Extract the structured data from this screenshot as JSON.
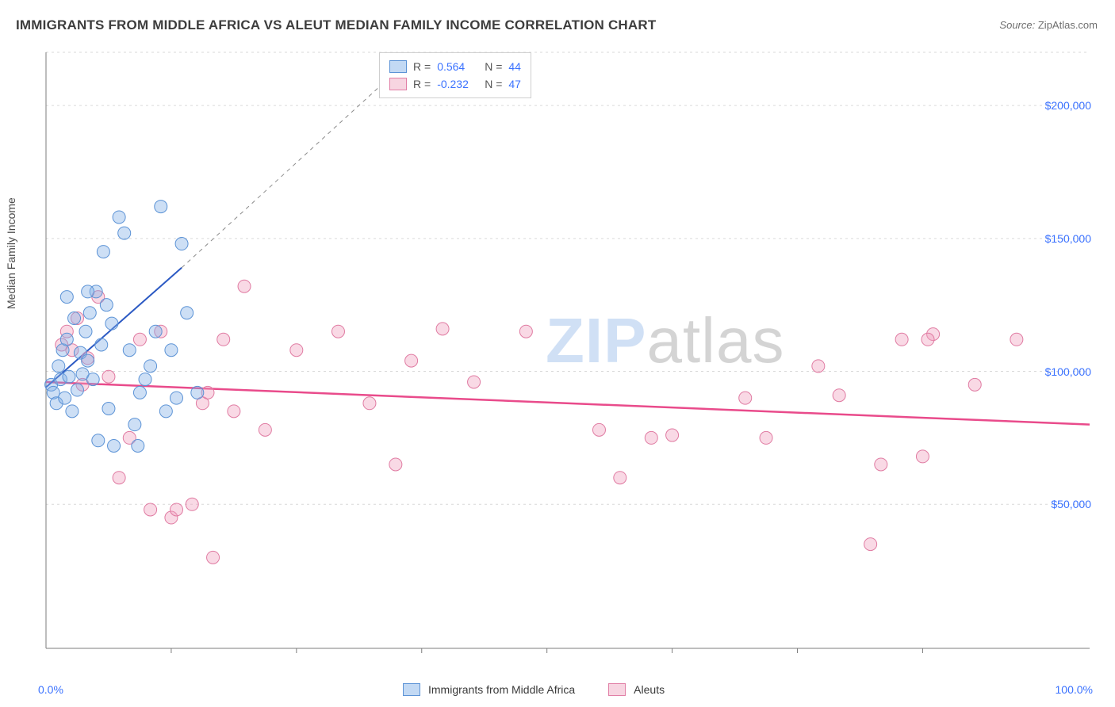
{
  "title": "IMMIGRANTS FROM MIDDLE AFRICA VS ALEUT MEDIAN FAMILY INCOME CORRELATION CHART",
  "source_label": "Source:",
  "source_value": "ZipAtlas.com",
  "watermark_a": "ZIP",
  "watermark_b": "atlas",
  "ylabel": "Median Family Income",
  "chart": {
    "type": "scatter",
    "background_color": "#ffffff",
    "grid_color": "#d9d9d9",
    "axis_color": "#7d7d7d",
    "xlim": [
      0,
      100
    ],
    "ylim": [
      0,
      220000
    ],
    "xtick_left": "0.0%",
    "xtick_right": "100.0%",
    "yticks": [
      50000,
      100000,
      150000,
      200000
    ],
    "ytick_labels": [
      "$50,000",
      "$100,000",
      "$150,000",
      "$200,000"
    ],
    "xtick_positions": [
      12,
      24,
      36,
      48,
      60,
      72,
      84
    ],
    "legend_top": {
      "r_label": "R =",
      "n_label": "N =",
      "series": [
        {
          "swatch": "blue",
          "r": "0.564",
          "n": "44"
        },
        {
          "swatch": "pink",
          "r": "-0.232",
          "n": "47"
        }
      ]
    },
    "legend_bottom": {
      "a_label": "Immigrants from Middle Africa",
      "b_label": "Aleuts"
    },
    "series_blue": {
      "color_fill": "rgba(130,175,230,0.40)",
      "color_stroke": "#5c93d6",
      "marker_radius": 8,
      "trend": {
        "x1": 0,
        "y1": 94000,
        "x2": 13,
        "y2": 139000,
        "dash_to_x": 35,
        "dash_to_y": 218000,
        "color": "#2b59c3",
        "width": 2
      },
      "points": [
        [
          0.5,
          95000
        ],
        [
          0.7,
          92000
        ],
        [
          1.0,
          88000
        ],
        [
          1.2,
          102000
        ],
        [
          1.4,
          97000
        ],
        [
          1.6,
          108000
        ],
        [
          1.8,
          90000
        ],
        [
          2.0,
          112000
        ],
        [
          2.2,
          98000
        ],
        [
          2.5,
          85000
        ],
        [
          2.7,
          120000
        ],
        [
          3.0,
          93000
        ],
        [
          3.3,
          107000
        ],
        [
          3.5,
          99000
        ],
        [
          3.8,
          115000
        ],
        [
          4.0,
          104000
        ],
        [
          4.2,
          122000
        ],
        [
          4.5,
          97000
        ],
        [
          4.8,
          130000
        ],
        [
          5.0,
          74000
        ],
        [
          5.3,
          110000
        ],
        [
          5.5,
          145000
        ],
        [
          5.8,
          125000
        ],
        [
          6.0,
          86000
        ],
        [
          6.3,
          118000
        ],
        [
          6.5,
          72000
        ],
        [
          7.0,
          158000
        ],
        [
          7.5,
          152000
        ],
        [
          8.0,
          108000
        ],
        [
          8.5,
          80000
        ],
        [
          8.8,
          72000
        ],
        [
          9.0,
          92000
        ],
        [
          9.5,
          97000
        ],
        [
          10.0,
          102000
        ],
        [
          10.5,
          115000
        ],
        [
          11.0,
          162000
        ],
        [
          11.5,
          85000
        ],
        [
          12.0,
          108000
        ],
        [
          12.5,
          90000
        ],
        [
          13.0,
          148000
        ],
        [
          13.5,
          122000
        ],
        [
          14.5,
          92000
        ],
        [
          4.0,
          130000
        ],
        [
          2.0,
          128000
        ]
      ]
    },
    "series_pink": {
      "color_fill": "rgba(240,160,190,0.40)",
      "color_stroke": "#e07ba2",
      "marker_radius": 8,
      "trend": {
        "x1": 0,
        "y1": 96000,
        "x2": 100,
        "y2": 80000,
        "color": "#e94b8b",
        "width": 2.5
      },
      "points": [
        [
          1.5,
          110000
        ],
        [
          2.0,
          115000
        ],
        [
          2.5,
          108000
        ],
        [
          3.0,
          120000
        ],
        [
          3.5,
          95000
        ],
        [
          4.0,
          105000
        ],
        [
          5.0,
          128000
        ],
        [
          6.0,
          98000
        ],
        [
          7.0,
          60000
        ],
        [
          8.0,
          75000
        ],
        [
          9.0,
          112000
        ],
        [
          10.0,
          48000
        ],
        [
          11.0,
          115000
        ],
        [
          12.0,
          45000
        ],
        [
          12.5,
          48000
        ],
        [
          14.0,
          50000
        ],
        [
          15.0,
          88000
        ],
        [
          15.5,
          92000
        ],
        [
          16.0,
          30000
        ],
        [
          17.0,
          112000
        ],
        [
          18.0,
          85000
        ],
        [
          19.0,
          132000
        ],
        [
          21.0,
          78000
        ],
        [
          24.0,
          108000
        ],
        [
          28.0,
          115000
        ],
        [
          31.0,
          88000
        ],
        [
          33.5,
          65000
        ],
        [
          35.0,
          104000
        ],
        [
          38.0,
          116000
        ],
        [
          41.0,
          96000
        ],
        [
          46.0,
          115000
        ],
        [
          53.0,
          78000
        ],
        [
          55.0,
          60000
        ],
        [
          58.0,
          75000
        ],
        [
          60.0,
          76000
        ],
        [
          67.0,
          90000
        ],
        [
          69.0,
          75000
        ],
        [
          74.0,
          102000
        ],
        [
          76.0,
          91000
        ],
        [
          79.0,
          35000
        ],
        [
          80.0,
          65000
        ],
        [
          82.0,
          112000
        ],
        [
          84.0,
          68000
        ],
        [
          85.0,
          114000
        ],
        [
          89.0,
          95000
        ],
        [
          93.0,
          112000
        ],
        [
          84.5,
          112000
        ]
      ]
    }
  }
}
